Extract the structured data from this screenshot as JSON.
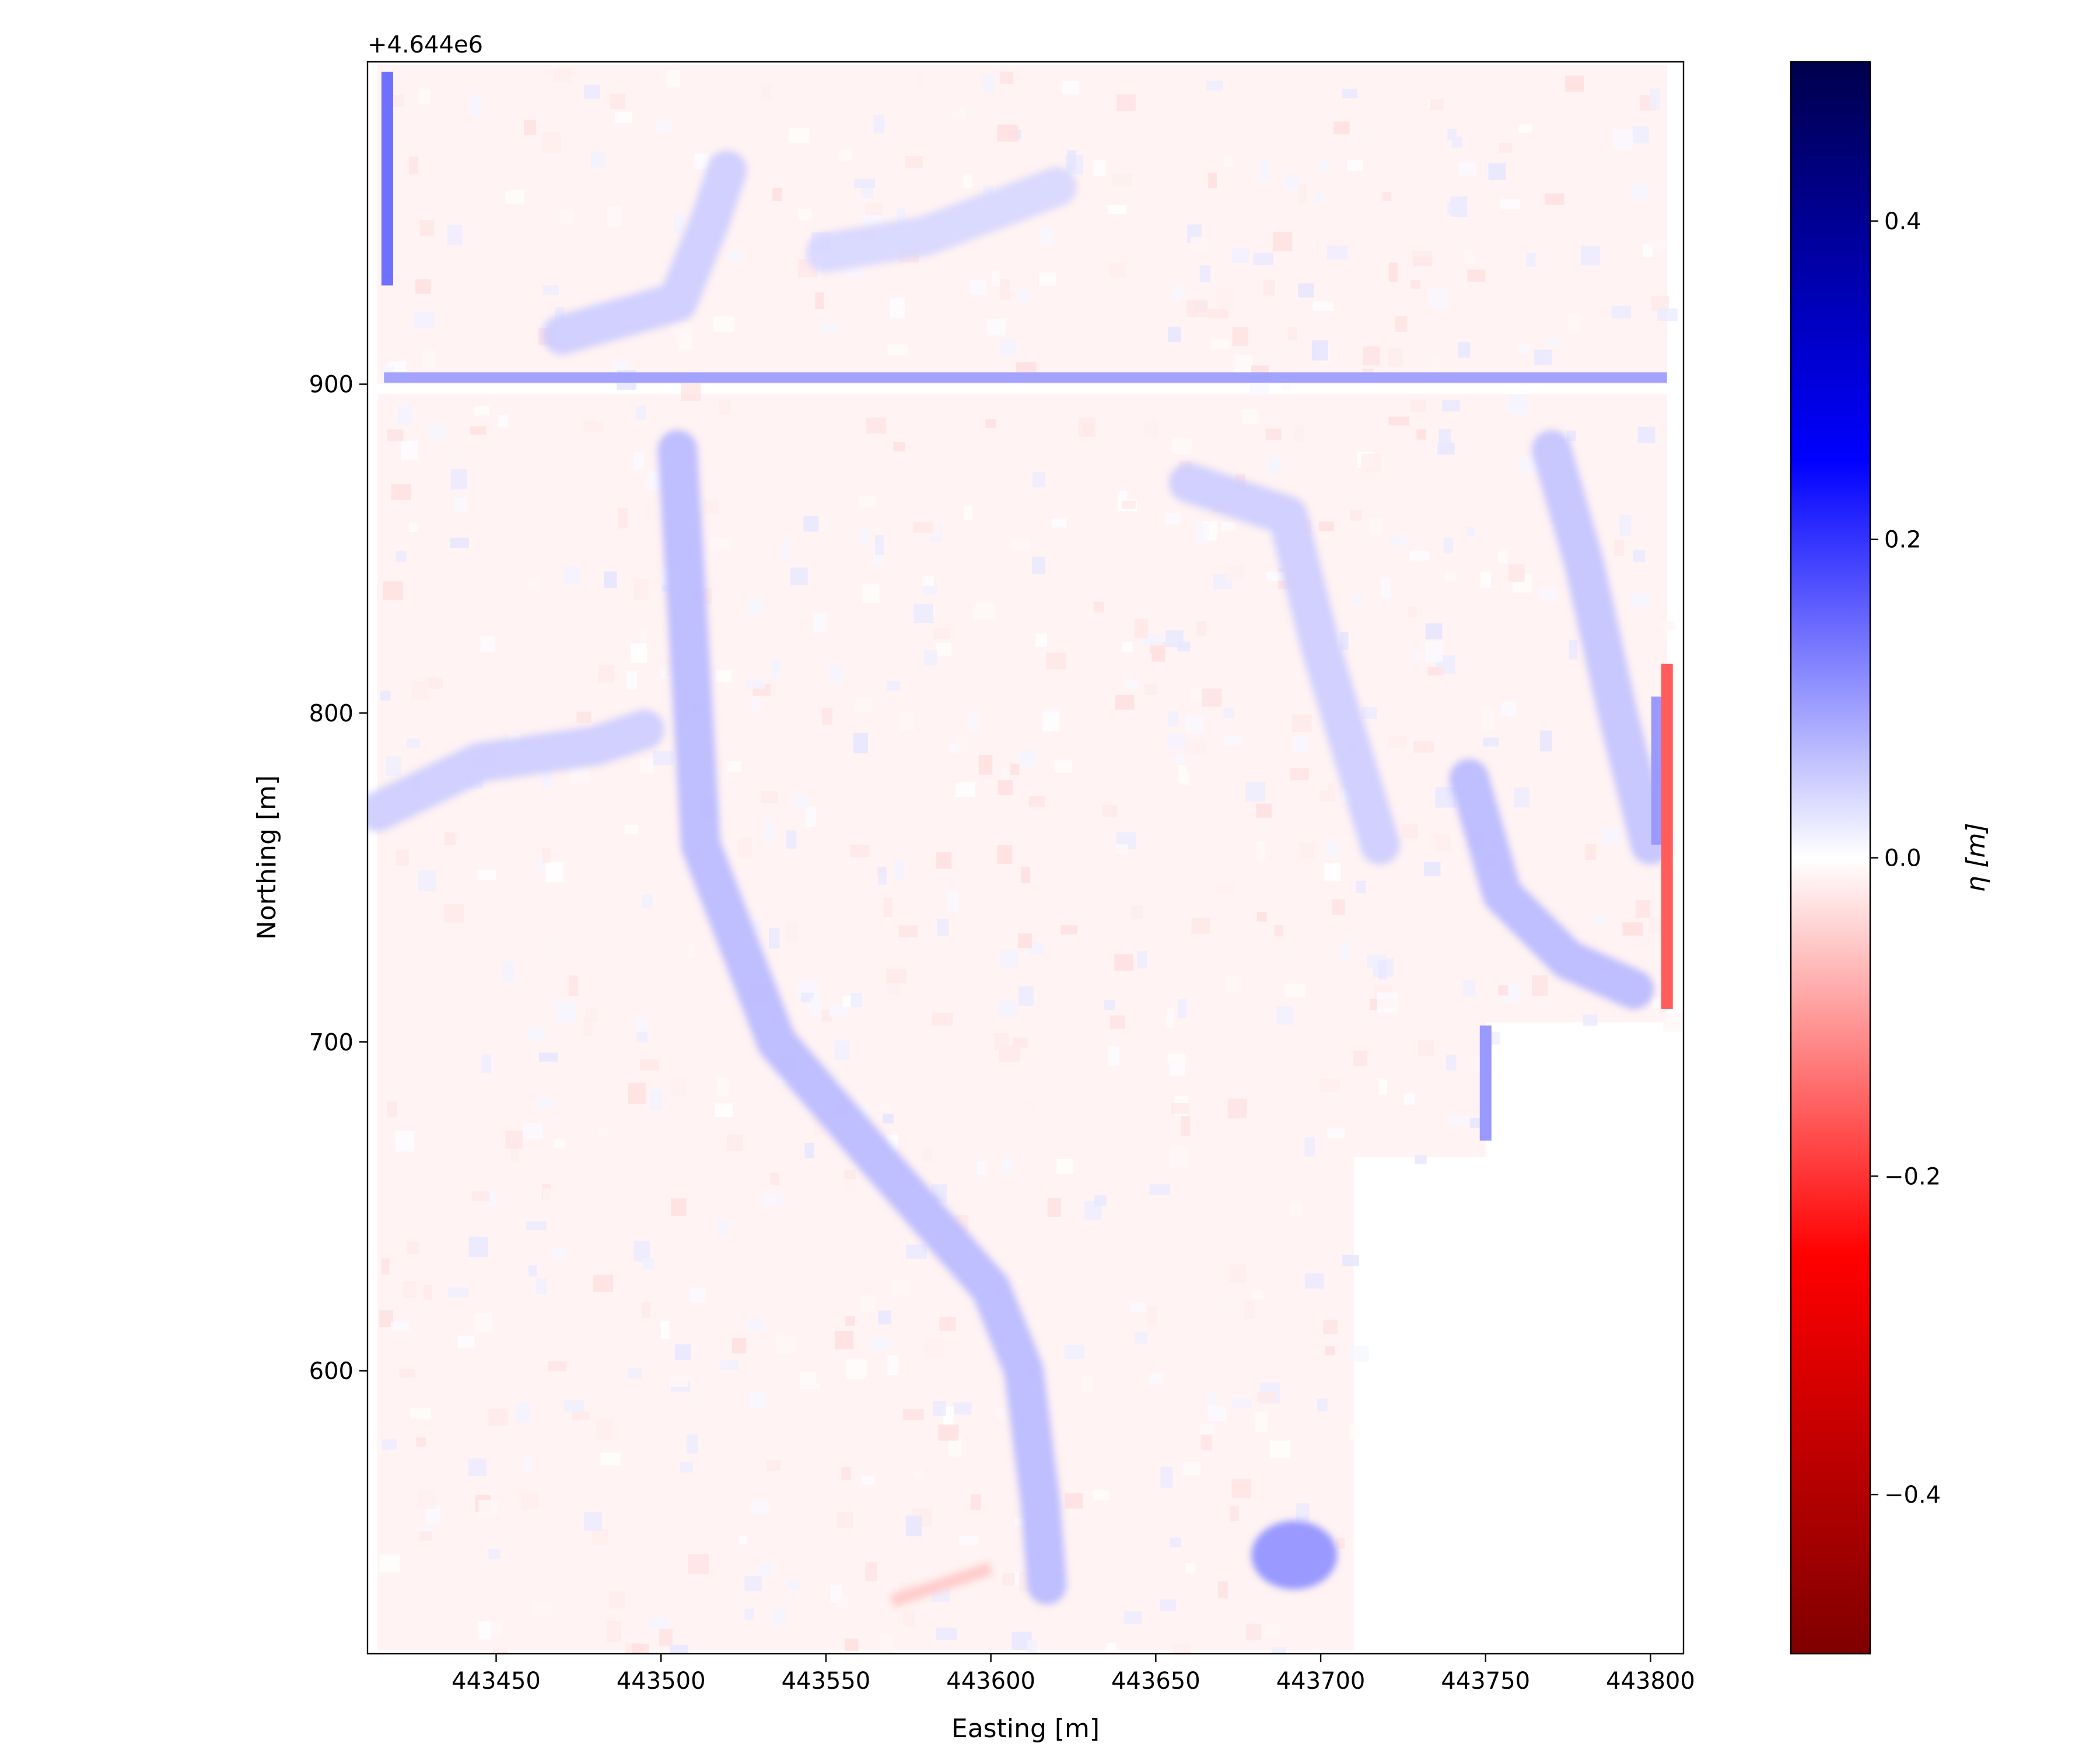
{
  "chart_data": {
    "type": "heatmap",
    "title": "",
    "xlabel": "Easting [m]",
    "ylabel": "Northing [m]",
    "y_offset_text": "+4.644e6",
    "x_range": [
      443411,
      443810
    ],
    "y_range": [
      514,
      998
    ],
    "x_ticks": [
      443450,
      443500,
      443550,
      443600,
      443650,
      443700,
      443750,
      443800
    ],
    "y_ticks": [
      600,
      700,
      800,
      900
    ],
    "grid": false,
    "colormap": "seismic_r",
    "colorbar": {
      "label": "η [m]",
      "range": [
        -0.5,
        0.5
      ],
      "ticks": [
        0.4,
        0.2,
        0.0,
        -0.2,
        -0.4
      ],
      "tick_labels": [
        "0.4",
        "0.2",
        "0.0",
        "−0.2",
        "−0.4"
      ],
      "colors": [
        "#7f0000",
        "#ff0000",
        "#ffffff",
        "#0000ff",
        "#00004c"
      ]
    },
    "data_extent": {
      "upper_block": {
        "easting": [
          443414,
          443805
        ],
        "northing": [
          900,
          997
        ]
      },
      "east_block": {
        "easting": [
          443414,
          443805
        ],
        "northing": [
          706,
          897
        ]
      },
      "middle_block": {
        "easting": [
          443414,
          443750
        ],
        "northing": [
          665,
          706
        ]
      },
      "south_block": {
        "easting": [
          443414,
          443710
        ],
        "northing": [
          515,
          665
        ]
      }
    },
    "features": [
      {
        "kind": "channel",
        "sign": "positive",
        "value": 0.07,
        "width": 12,
        "path": [
          [
            443505,
            880
          ],
          [
            443508,
            830
          ],
          [
            443512,
            760
          ],
          [
            443535,
            700
          ],
          [
            443565,
            665
          ],
          [
            443600,
            625
          ],
          [
            443610,
            600
          ],
          [
            443615,
            560
          ],
          [
            443617,
            535
          ]
        ]
      },
      {
        "kind": "channel",
        "sign": "positive",
        "value": 0.05,
        "width": 12,
        "path": [
          [
            443414,
            770
          ],
          [
            443445,
            785
          ],
          [
            443480,
            790
          ],
          [
            443495,
            795
          ]
        ]
      },
      {
        "kind": "channel",
        "sign": "positive",
        "value": 0.05,
        "width": 12,
        "path": [
          [
            443470,
            915
          ],
          [
            443505,
            925
          ],
          [
            443515,
            950
          ],
          [
            443520,
            965
          ]
        ]
      },
      {
        "kind": "channel",
        "sign": "positive",
        "value": 0.05,
        "width": 12,
        "path": [
          [
            443660,
            870
          ],
          [
            443690,
            860
          ],
          [
            443700,
            820
          ],
          [
            443718,
            760
          ]
        ]
      },
      {
        "kind": "channel",
        "sign": "positive",
        "value": 0.06,
        "width": 12,
        "path": [
          [
            443770,
            880
          ],
          [
            443780,
            845
          ],
          [
            443790,
            800
          ],
          [
            443800,
            760
          ]
        ]
      },
      {
        "kind": "channel",
        "sign": "positive",
        "value": 0.07,
        "width": 12,
        "path": [
          [
            443745,
            780
          ],
          [
            443755,
            745
          ],
          [
            443775,
            725
          ],
          [
            443795,
            716
          ]
        ]
      },
      {
        "kind": "channel",
        "sign": "positive",
        "value": 0.04,
        "width": 12,
        "path": [
          [
            443620,
            960
          ],
          [
            443580,
            945
          ],
          [
            443550,
            940
          ]
        ]
      },
      {
        "kind": "blob",
        "sign": "positive",
        "value": 0.1,
        "center": [
          443692,
          544
        ],
        "radius": 13
      },
      {
        "kind": "band",
        "sign": "positive",
        "value": 0.09,
        "orientation": "horizontal",
        "northing": 902,
        "easting": [
          443416,
          443805
        ]
      },
      {
        "kind": "band",
        "sign": "positive",
        "value": 0.14,
        "orientation": "vertical",
        "easting": 443417,
        "northing": [
          930,
          995
        ]
      },
      {
        "kind": "band",
        "sign": "positive",
        "value": 0.1,
        "orientation": "vertical",
        "easting": 443802,
        "northing": [
          760,
          805
        ]
      },
      {
        "kind": "band",
        "sign": "negative",
        "value": -0.16,
        "orientation": "vertical",
        "easting": 443805,
        "northing": [
          710,
          815
        ]
      },
      {
        "kind": "band",
        "sign": "positive",
        "value": 0.1,
        "orientation": "vertical",
        "easting": 443750,
        "northing": [
          670,
          705
        ]
      },
      {
        "kind": "band",
        "sign": "negative",
        "value": -0.06,
        "orientation": "diagonal",
        "path": [
          [
            443570,
            530
          ],
          [
            443600,
            540
          ]
        ]
      }
    ]
  }
}
